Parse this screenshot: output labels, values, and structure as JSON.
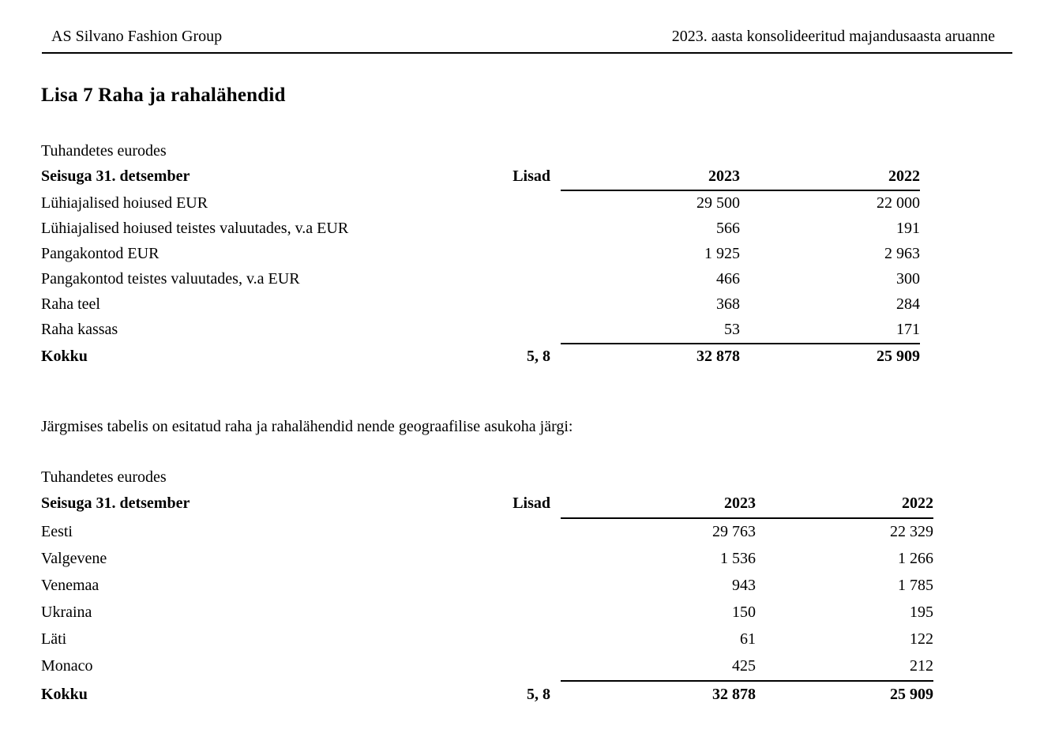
{
  "header": {
    "left": "AS Silvano Fashion Group",
    "right": "2023. aasta konsolideeritud majandusaasta aruanne"
  },
  "title": "Lisa 7 Raha ja rahalähendid",
  "note": "Järgmises tabelis on esitatud raha ja rahalähendid nende geograafilise asukoha järgi:",
  "table1": {
    "unit_label": "Tuhandetes eurodes",
    "header": {
      "label": "Seisuga 31. detsember",
      "lisad": "Lisad",
      "y2023": "2023",
      "y2022": "2022"
    },
    "rows": [
      {
        "label": "Lühiajalised hoiused EUR",
        "lisad": "",
        "y2023": "29 500",
        "y2022": "22 000"
      },
      {
        "label": "Lühiajalised hoiused teistes valuutades, v.a EUR",
        "lisad": "",
        "y2023": "566",
        "y2022": "191"
      },
      {
        "label": "Pangakontod EUR",
        "lisad": "",
        "y2023": "1 925",
        "y2022": "2 963"
      },
      {
        "label": "Pangakontod teistes valuutades, v.a EUR",
        "lisad": "",
        "y2023": "466",
        "y2022": "300"
      },
      {
        "label": "Raha teel",
        "lisad": "",
        "y2023": "368",
        "y2022": "284"
      },
      {
        "label": "Raha kassas",
        "lisad": "",
        "y2023": "53",
        "y2022": "171"
      }
    ],
    "total": {
      "label": "Kokku",
      "lisad": "5, 8",
      "y2023": "32 878",
      "y2022": "25 909"
    }
  },
  "table2": {
    "unit_label": "Tuhandetes eurodes",
    "header": {
      "label": "Seisuga 31. detsember",
      "lisad": "Lisad",
      "y2023": "2023",
      "y2022": "2022"
    },
    "rows": [
      {
        "label": "Eesti",
        "lisad": "",
        "y2023": "29 763",
        "y2022": "22 329"
      },
      {
        "label": "Valgevene",
        "lisad": "",
        "y2023": "1 536",
        "y2022": "1 266"
      },
      {
        "label": "Venemaa",
        "lisad": "",
        "y2023": "943",
        "y2022": "1 785"
      },
      {
        "label": "Ukraina",
        "lisad": "",
        "y2023": "150",
        "y2022": "195"
      },
      {
        "label": "Läti",
        "lisad": "",
        "y2023": "61",
        "y2022": "122"
      },
      {
        "label": "Monaco",
        "lisad": "",
        "y2023": "425",
        "y2022": "212"
      }
    ],
    "total": {
      "label": "Kokku",
      "lisad": "5, 8",
      "y2023": "32 878",
      "y2022": "25 909"
    }
  },
  "colors": {
    "text": "#000000",
    "background": "#ffffff",
    "rule": "#000000"
  }
}
